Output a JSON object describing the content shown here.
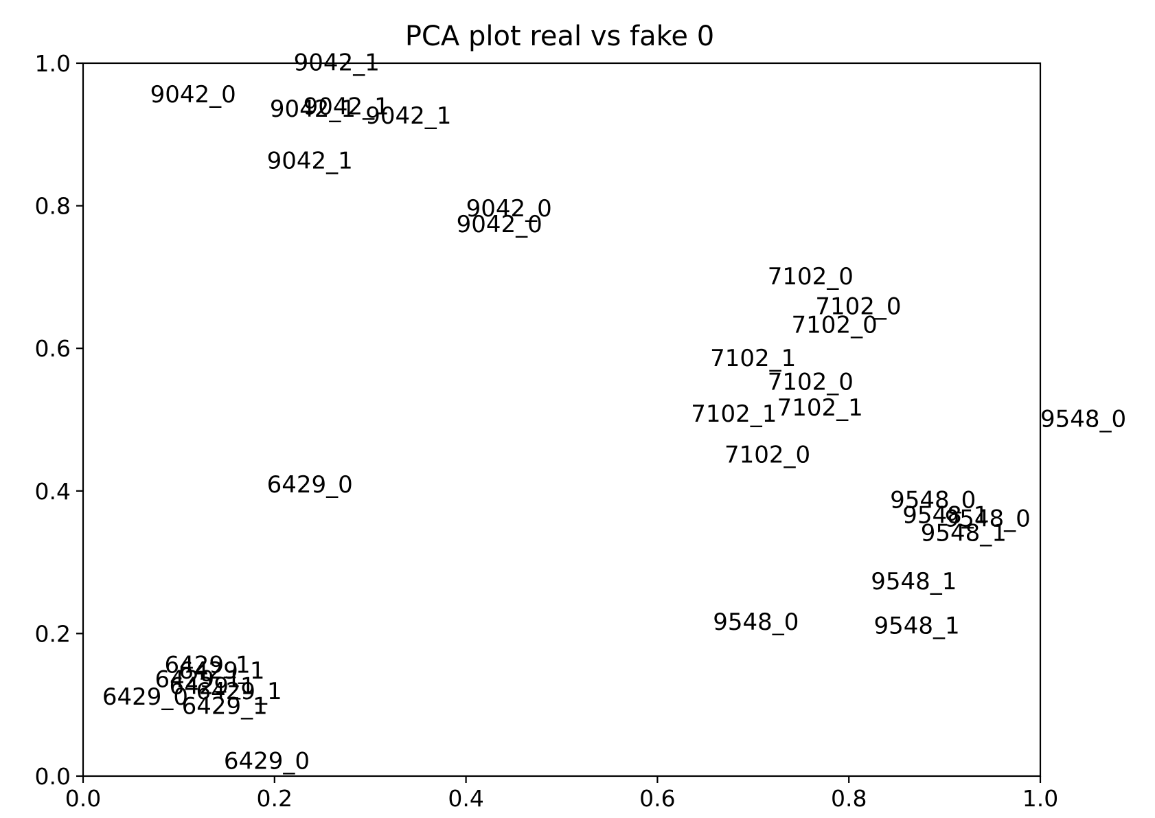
{
  "chart_data": {
    "type": "scatter",
    "title": "PCA plot real vs fake 0",
    "xlabel": "",
    "ylabel": "",
    "xlim": [
      0.0,
      1.0
    ],
    "ylim": [
      0.0,
      1.0
    ],
    "grid": false,
    "legend": "none",
    "x_ticks": [
      "0.0",
      "0.2",
      "0.4",
      "0.6",
      "0.8",
      "1.0"
    ],
    "y_ticks": [
      "0.0",
      "0.2",
      "0.4",
      "0.6",
      "0.8",
      "1.0"
    ],
    "points": [
      {
        "label": "9042_1",
        "x": 0.22,
        "y": 0.99
      },
      {
        "label": "9042_0",
        "x": 0.07,
        "y": 0.945
      },
      {
        "label": "9042_1",
        "x": 0.195,
        "y": 0.925
      },
      {
        "label": "9042_1",
        "x": 0.23,
        "y": 0.928
      },
      {
        "label": "9042_1",
        "x": 0.295,
        "y": 0.915
      },
      {
        "label": "9042_1",
        "x": 0.192,
        "y": 0.852
      },
      {
        "label": "9042_0",
        "x": 0.4,
        "y": 0.785
      },
      {
        "label": "9042_0",
        "x": 0.39,
        "y": 0.763
      },
      {
        "label": "7102_0",
        "x": 0.715,
        "y": 0.69
      },
      {
        "label": "7102_0",
        "x": 0.765,
        "y": 0.648
      },
      {
        "label": "7102_0",
        "x": 0.74,
        "y": 0.622
      },
      {
        "label": "7102_1",
        "x": 0.655,
        "y": 0.575
      },
      {
        "label": "7102_0",
        "x": 0.715,
        "y": 0.542
      },
      {
        "label": "7102_1",
        "x": 0.725,
        "y": 0.506
      },
      {
        "label": "7102_1",
        "x": 0.635,
        "y": 0.497
      },
      {
        "label": "7102_0",
        "x": 0.67,
        "y": 0.44
      },
      {
        "label": "9548_0",
        "x": 1.0,
        "y": 0.49
      },
      {
        "label": "9548_0",
        "x": 0.843,
        "y": 0.376
      },
      {
        "label": "9548_1",
        "x": 0.856,
        "y": 0.355
      },
      {
        "label": "9548_0",
        "x": 0.9,
        "y": 0.35
      },
      {
        "label": "9548_1",
        "x": 0.875,
        "y": 0.33
      },
      {
        "label": "9548_1",
        "x": 0.823,
        "y": 0.262
      },
      {
        "label": "9548_0",
        "x": 0.658,
        "y": 0.205
      },
      {
        "label": "9548_1",
        "x": 0.826,
        "y": 0.2
      },
      {
        "label": "6429_0",
        "x": 0.192,
        "y": 0.398
      },
      {
        "label": "6429_1",
        "x": 0.085,
        "y": 0.145
      },
      {
        "label": "6429_1",
        "x": 0.1,
        "y": 0.137
      },
      {
        "label": "6429_1",
        "x": 0.075,
        "y": 0.125
      },
      {
        "label": "6429_1",
        "x": 0.09,
        "y": 0.115
      },
      {
        "label": "6429_1",
        "x": 0.118,
        "y": 0.108
      },
      {
        "label": "6429_0",
        "x": 0.02,
        "y": 0.1
      },
      {
        "label": "6429_1",
        "x": 0.103,
        "y": 0.087
      },
      {
        "label": "6429_0",
        "x": 0.147,
        "y": 0.01
      }
    ]
  }
}
